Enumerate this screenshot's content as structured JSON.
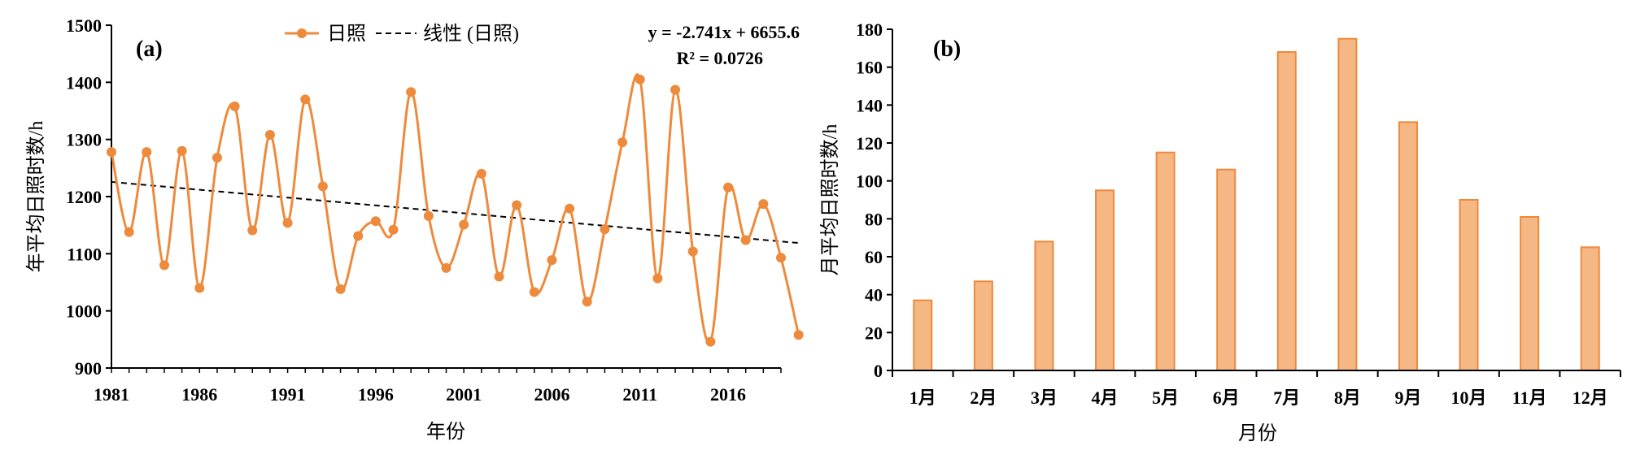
{
  "chart_data": [
    {
      "panel": "(a)",
      "type": "line",
      "xlabel": "年份",
      "ylabel": "年平均日照时数/h",
      "xlim": [
        1981,
        2019
      ],
      "ylim": [
        900,
        1500
      ],
      "xticks": [
        1981,
        1986,
        1991,
        1996,
        2001,
        2006,
        2011,
        2016
      ],
      "yticks": [
        900,
        1000,
        1100,
        1200,
        1300,
        1400,
        1500
      ],
      "legend_position": "top-center",
      "color": "#ed8a3c",
      "series": [
        {
          "name": "日照",
          "x": [
            1981,
            1982,
            1983,
            1984,
            1985,
            1986,
            1987,
            1988,
            1989,
            1990,
            1991,
            1992,
            1993,
            1994,
            1995,
            1996,
            1997,
            1998,
            1999,
            2000,
            2001,
            2002,
            2003,
            2004,
            2005,
            2006,
            2007,
            2008,
            2009,
            2010,
            2011,
            2012,
            2013,
            2014,
            2015,
            2016,
            2017,
            2018,
            2019,
            2020
          ],
          "values": [
            1278,
            1138,
            1278,
            1080,
            1280,
            1040,
            1268,
            1358,
            1141,
            1308,
            1154,
            1370,
            1218,
            1038,
            1131,
            1157,
            1142,
            1383,
            1166,
            1075,
            1151,
            1240,
            1060,
            1185,
            1033,
            1089,
            1179,
            1016,
            1143,
            1295,
            1405,
            1057,
            1387,
            1104,
            946,
            1216,
            1124,
            1187,
            1093,
            958
          ]
        },
        {
          "name": "线性 (日照)",
          "style": "dashed",
          "fit": {
            "slope": -2.741,
            "intercept": 6655.6
          }
        }
      ],
      "equation": "y = -2.741x + 6655.6",
      "r2_text": "R² = 0.0726"
    },
    {
      "panel": "(b)",
      "type": "bar",
      "xlabel": "月份",
      "ylabel": "月平均日照时数/h",
      "ylim": [
        0,
        180
      ],
      "yticks": [
        0,
        20,
        40,
        60,
        80,
        100,
        120,
        140,
        160,
        180
      ],
      "fill": "#f5b783",
      "stroke": "#ed8a3c",
      "categories": [
        "1月",
        "2月",
        "3月",
        "4月",
        "5月",
        "6月",
        "7月",
        "8月",
        "9月",
        "10月",
        "11月",
        "12月"
      ],
      "values": [
        37,
        47,
        68,
        95,
        115,
        106,
        168,
        175,
        131,
        90,
        81,
        65
      ]
    }
  ]
}
